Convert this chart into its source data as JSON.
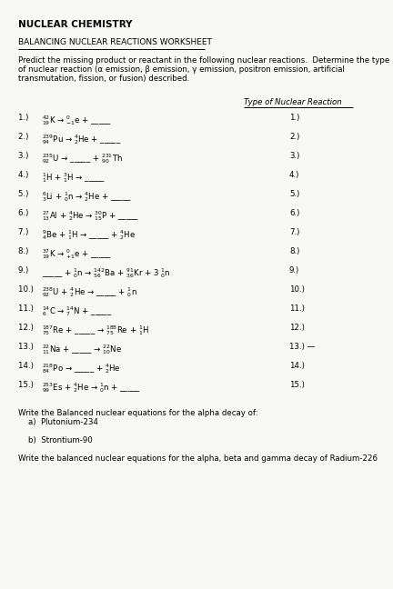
{
  "bg_color": "#f8f8f6",
  "title": "NUCLEAR CHEMISTRY",
  "subtitle": "BALANCING NUCLEAR REACTIONS WORKSHEET",
  "intro_lines": [
    "Predict the missing product or reactant in the following nuclear reactions.  Determine the type",
    "of nuclear reaction (α emission, β emission, γ emission, positron emission, artificial",
    "transmutation, fission, or fusion) described."
  ],
  "col_header": "Type of Nuclear Reaction",
  "reactions": [
    [
      "1.)   ",
      "$^{42}_{19}$K → $^{0}_{-1}$e + _____"
    ],
    [
      "2.)   ",
      "$^{239}_{94}$Pu → $^{4}_{2}$He + _____"
    ],
    [
      "3.)   ",
      "$^{235}_{92}$U → _____ + $^{231}_{90}$Th"
    ],
    [
      "4.)   ",
      "$^{1}_{1}$H + $^{3}_{1}$H → _____"
    ],
    [
      "5.)   ",
      "$^{6}_{3}$Li + $^{1}_{0}$n → $^{4}_{2}$He + _____"
    ],
    [
      "6.)   ",
      "$^{27}_{13}$Al + $^{4}_{2}$He → $^{30}_{15}$P + _____"
    ],
    [
      "7.)   ",
      "$^{9}_{4}$Be + $^{1}_{1}$H → _____ + $^{4}_{2}$He"
    ],
    [
      "8.)   ",
      "$^{37}_{19}$K → $^{0}_{+1}$e + _____"
    ],
    [
      "9.)   ",
      "_____ + $^{1}_{0}$n → $^{142}_{56}$Ba + $^{91}_{36}$Kr + 3 $^{1}_{0}$n"
    ],
    [
      "10.)  ",
      "$^{238}_{92}$U + $^{4}_{2}$He → _____ + $^{1}_{0}$n"
    ],
    [
      "11.)  ",
      "$^{14}_{6}$C → $^{14}_{7}$N + _____"
    ],
    [
      "12.)  ",
      "$^{187}_{75}$Re + _____ → $^{188}_{75}$Re + $^{1}_{1}$H"
    ],
    [
      "13.)  ",
      "$^{22}_{11}$Na + _____ → $^{22}_{10}$Ne"
    ],
    [
      "14.)  ",
      "$^{218}_{84}$Po → _____ + $^{4}_{2}$He"
    ],
    [
      "15.)  ",
      "$^{253}_{99}$Es + $^{4}_{2}$He → $^{1}_{0}$n + _____"
    ]
  ],
  "reaction_numbers_right": [
    "1.)",
    "2.)",
    "3.)",
    "4.)",
    "5.)",
    "6.)",
    "7.)",
    "8.)",
    "9.)",
    "10.)",
    "11.)",
    "12.)",
    "13.) —",
    "14.)",
    "15.)"
  ],
  "write_lines": [
    "Write the Balanced nuclear equations for the alpha decay of:",
    "    a)  Plutonium-234",
    "",
    "    b)  Strontium-90",
    "",
    "Write the balanced nuclear equations for the alpha, beta and gamma decay of Radium-226"
  ]
}
